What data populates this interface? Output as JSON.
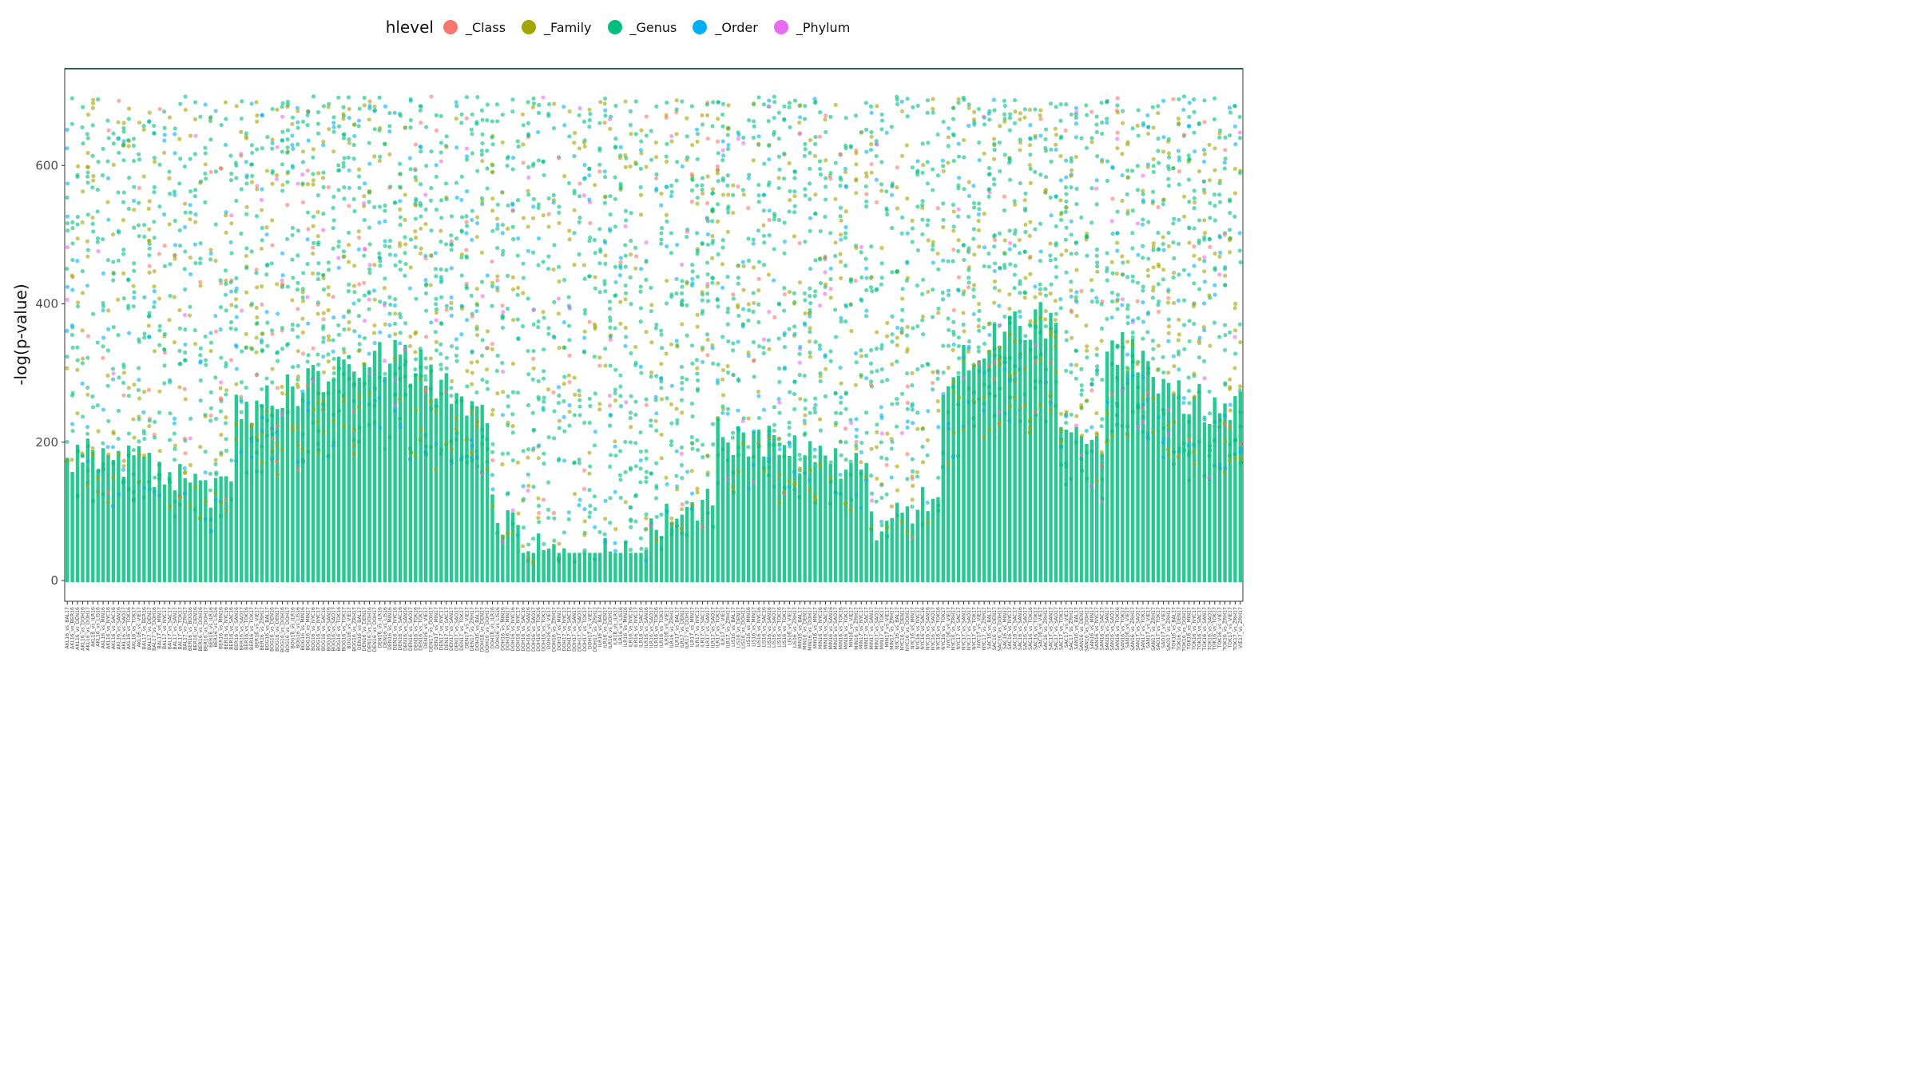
{
  "legend": {
    "title": "hlevel",
    "items": [
      {
        "label": "_Class",
        "color": "#F8766D"
      },
      {
        "label": "_Family",
        "color": "#A3A500"
      },
      {
        "label": "_Genus",
        "color": "#00BF7D"
      },
      {
        "label": "_Order",
        "color": "#00B0F6"
      },
      {
        "label": "_Phylum",
        "color": "#E76BF3"
      }
    ]
  },
  "chart_data": {
    "type": "scatter",
    "xlabel": "",
    "ylabel": "-log(p-value)",
    "ylim": [
      -30,
      740
    ],
    "yticks": [
      0,
      200,
      400,
      600
    ],
    "ceiling_line": 740,
    "grid": false,
    "legend_position": "top",
    "series": [
      {
        "name": "_Class",
        "color": "#F8766D"
      },
      {
        "name": "_Family",
        "color": "#A3A500"
      },
      {
        "name": "_Genus",
        "color": "#00BF7D"
      },
      {
        "name": "_Order",
        "color": "#00B0F6"
      },
      {
        "name": "_Phylum",
        "color": "#E76BF3"
      }
    ],
    "categories": [
      "AKL16_vs_BAL17",
      "AKL16_vs_BER16",
      "AKL16_vs_DEN16",
      "AKL16_vs_DOH16",
      "AKL16_vs_DOH17",
      "AKL16_vs_ILR16",
      "AKL16_vs_LIS16",
      "AKL16_vs_MIN16",
      "AKL16_vs_NYC16",
      "AKL16_vs_SAC16",
      "AKL16_vs_SAN16",
      "AKL16_vs_SAO17",
      "AKL16_vs_TOK16",
      "AKL16_vs_TOK17",
      "AKL16_vs_VIE17",
      "BAL17_vs_BER16",
      "BAL17_vs_DEN17",
      "BAL17_vs_DOH16",
      "BAL17_vs_MIN17",
      "BAL17_vs_NYC17",
      "BAL17_vs_SAC17",
      "BAL17_vs_SAN17",
      "BAL17_vs_TOK17",
      "BAL17_vs_ZRH17",
      "BER16_vs_BOG16",
      "BER16_vs_DEN16",
      "BER16_vs_DOH16",
      "BER16_vs_DOH17",
      "BER16_vs_ILR16",
      "BER16_vs_LIS16",
      "BER16_vs_MIN16",
      "BER16_vs_NYC16",
      "BER16_vs_SAC16",
      "BER16_vs_SAN16",
      "BER16_vs_SAO17",
      "BER16_vs_TOK16",
      "BER16_vs_TOK17",
      "BER16_vs_VIE17",
      "BER16_vs_ZRH17",
      "BOG16_vs_BAL17",
      "BOG16_vs_DEN16",
      "BOG16_vs_DEN17",
      "BOG16_vs_DOH16",
      "BOG16_vs_DOH17",
      "BOG16_vs_ILR16",
      "BOG16_vs_LIS16",
      "BOG16_vs_MIN16",
      "BOG16_vs_MIN17",
      "BOG16_vs_NYC16",
      "BOG16_vs_NYC17",
      "BOG16_vs_SAC16",
      "BOG16_vs_SAN16",
      "BOG16_vs_SAO17",
      "BOG16_vs_TOK16",
      "BOG16_vs_TOK17",
      "BOG16_vs_VIE17",
      "BOG16_vs_ZRH17",
      "DEN16_vs_BAL17",
      "DEN16_vs_DEN17",
      "DEN16_vs_DOH16",
      "DEN16_vs_DOH17",
      "DEN16_vs_ILR16",
      "DEN16_vs_LIS16",
      "DEN16_vs_MIN16",
      "DEN16_vs_NYC16",
      "DEN16_vs_SAC16",
      "DEN16_vs_SAN16",
      "DEN16_vs_SAO17",
      "DEN16_vs_TOK16",
      "DEN16_vs_TOK17",
      "DEN16_vs_VIE17",
      "DEN17_vs_DOH17",
      "DEN17_vs_MIN17",
      "DEN17_vs_NYC17",
      "DEN17_vs_SAC17",
      "DEN17_vs_SAN17",
      "DEN17_vs_SAO17",
      "DEN17_vs_TOK17",
      "DEN17_vs_VIE17",
      "DEN17_vs_ZRH17",
      "DOH16_vs_BAL17",
      "DOH16_vs_DEN17",
      "DOH16_vs_DOH17",
      "DOH16_vs_ILR16",
      "DOH16_vs_LIS16",
      "DOH16_vs_MIN16",
      "DOH16_vs_MIN17",
      "DOH16_vs_NYC16",
      "DOH16_vs_NYC17",
      "DOH16_vs_SAC16",
      "DOH16_vs_SAN16",
      "DOH16_vs_SAO17",
      "DOH16_vs_TOK16",
      "DOH16_vs_TOK17",
      "DOH16_vs_VIE17",
      "DOH16_vs_ZRH17",
      "DOH17_vs_MIN17",
      "DOH17_vs_NYC17",
      "DOH17_vs_SAC17",
      "DOH17_vs_SAN17",
      "DOH17_vs_SAO17",
      "DOH17_vs_TOK17",
      "DOH17_vs_VIE17",
      "DOH17_vs_ZRH17",
      "ILR16_vs_BAL17",
      "ILR16_vs_DEN17",
      "ILR16_vs_DOH17",
      "ILR16_vs_ILR17",
      "ILR16_vs_LIS16",
      "ILR16_vs_MIN16",
      "ILR16_vs_NYC16",
      "ILR16_vs_NYC17",
      "ILR16_vs_SAC16",
      "ILR16_vs_SAN16",
      "ILR16_vs_SAO17",
      "ILR16_vs_TOK16",
      "ILR16_vs_TOK17",
      "ILR16_vs_VIE17",
      "ILR16_vs_ZRH17",
      "ILR17_vs_BAL17",
      "ILR17_vs_DEN17",
      "ILR17_vs_DOH17",
      "ILR17_vs_MIN17",
      "ILR17_vs_NYC17",
      "ILR17_vs_SAC17",
      "ILR17_vs_SAN17",
      "ILR17_vs_SAO17",
      "ILR17_vs_TOK17",
      "ILR17_vs_VIE17",
      "ILR17_vs_ZRH17",
      "LIS16_vs_BAL17",
      "LIS16_vs_DEN17",
      "LIS16_vs_DOH17",
      "LIS16_vs_MIN16",
      "LIS16_vs_MIN17",
      "LIS16_vs_NYC16",
      "LIS16_vs_SAC16",
      "LIS16_vs_SAN16",
      "LIS16_vs_SAO17",
      "LIS16_vs_TOK16",
      "LIS16_vs_TOK17",
      "LIS16_vs_VIE17",
      "LIS16_vs_ZRH17",
      "MIN16_vs_BAL17",
      "MIN16_vs_DEN17",
      "MIN16_vs_DOH17",
      "MIN16_vs_MIN17",
      "MIN16_vs_NYC16",
      "MIN16_vs_SAC16",
      "MIN16_vs_SAN16",
      "MIN16_vs_SAO17",
      "MIN16_vs_TOK16",
      "MIN16_vs_TOK17",
      "MIN16_vs_VIE17",
      "MIN16_vs_ZRH17",
      "MIN17_vs_NYC17",
      "MIN17_vs_SAC17",
      "MIN17_vs_SAN17",
      "MIN17_vs_SAO17",
      "MIN17_vs_TOK17",
      "MIN17_vs_VIE17",
      "MIN17_vs_ZRH17",
      "NYC16_vs_BAL17",
      "NYC16_vs_DEN17",
      "NYC16_vs_DOH17",
      "NYC16_vs_MIN17",
      "NYC16_vs_NYC17",
      "NYC16_vs_SAC16",
      "NYC16_vs_SAN16",
      "NYC16_vs_SAO17",
      "NYC16_vs_TOK16",
      "NYC16_vs_TOK17",
      "NYC16_vs_VIE17",
      "NYC16_vs_ZRH17",
      "NYC17_vs_SAC17",
      "NYC17_vs_SAN17",
      "NYC17_vs_SAO17",
      "NYC17_vs_TOK17",
      "NYC17_vs_VIE17",
      "NYC17_vs_ZRH17",
      "SAC16_vs_BAL17",
      "SAC16_vs_DEN17",
      "SAC16_vs_DOH17",
      "SAC16_vs_MIN17",
      "SAC16_vs_NYC17",
      "SAC16_vs_SAC17",
      "SAC16_vs_SAN16",
      "SAC16_vs_SAO17",
      "SAC16_vs_TOK16",
      "SAC16_vs_TOK17",
      "SAC16_vs_VIE17",
      "SAC16_vs_ZRH17",
      "SAC17_vs_SAN17",
      "SAC17_vs_SAO17",
      "SAC17_vs_TOK17",
      "SAC17_vs_VIE17",
      "SAC17_vs_ZRH17",
      "SAN16_vs_BAL17",
      "SAN16_vs_DEN17",
      "SAN16_vs_DOH17",
      "SAN16_vs_MIN17",
      "SAN16_vs_NYC17",
      "SAN16_vs_SAC17",
      "SAN16_vs_SAN17",
      "SAN16_vs_SAO17",
      "SAN16_vs_TOK16",
      "SAN16_vs_TOK17",
      "SAN16_vs_VIE17",
      "SAN16_vs_ZRH17",
      "SAN17_vs_SAO17",
      "SAN17_vs_TOK17",
      "SAN17_vs_VIE17",
      "SAN17_vs_ZRH17",
      "SAO17_vs_TOK17",
      "SAO17_vs_VIE17",
      "SAO17_vs_ZRH17",
      "TOK16_vs_BAL17",
      "TOK16_vs_DEN17",
      "TOK16_vs_DOH17",
      "TOK16_vs_MIN17",
      "TOK16_vs_NYC17",
      "TOK16_vs_SAC17",
      "TOK16_vs_SAN17",
      "TOK16_vs_SAO17",
      "TOK16_vs_TOK17",
      "TOK16_vs_VIE17",
      "TOK16_vs_ZRH17",
      "TOK17_vs_VIE17",
      "TOK17_vs_ZRH17",
      "VIE17_vs_ZRH17"
    ]
  }
}
